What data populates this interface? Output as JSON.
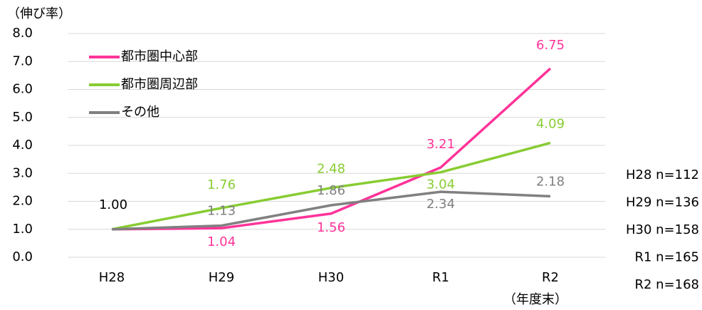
{
  "chart_data": {
    "type": "line",
    "ylabel": "（伸び率）",
    "categories": [
      "H28",
      "H29",
      "H30",
      "R1",
      "R2"
    ],
    "x_note": "（年度末）",
    "series": [
      {
        "name": "都市圏中心部",
        "color": "#ff3399",
        "values": [
          1.0,
          1.04,
          1.56,
          3.21,
          6.75
        ],
        "value_labels": [
          "1.00",
          "1.04",
          "1.56",
          "3.21",
          "6.75"
        ]
      },
      {
        "name": "都市圏周辺部",
        "color": "#88cc33",
        "values": [
          1.0,
          1.76,
          2.48,
          3.04,
          4.09
        ],
        "value_labels": [
          null,
          "1.76",
          "2.48",
          "3.04",
          "4.09"
        ]
      },
      {
        "name": "その他",
        "color": "#808080",
        "values": [
          1.0,
          1.13,
          1.86,
          2.34,
          2.18
        ],
        "value_labels": [
          null,
          "1.13",
          "1.86",
          "2.34",
          "2.18"
        ]
      }
    ],
    "ylim": [
      0,
      8
    ],
    "yticks": [
      {
        "value": 0,
        "label": "0.0"
      },
      {
        "value": 1,
        "label": "1.0"
      },
      {
        "value": 2,
        "label": "2.0"
      },
      {
        "value": 3,
        "label": "3.0"
      },
      {
        "value": 4,
        "label": "4.0"
      },
      {
        "value": 5,
        "label": "5.0"
      },
      {
        "value": 6,
        "label": "6.0"
      },
      {
        "value": 7,
        "label": "7.0"
      },
      {
        "value": 8,
        "label": "8.0"
      }
    ],
    "grid": true,
    "legend": "upper left",
    "notes": [
      "H28 n=112",
      "H29 n=136",
      "H30 n=158",
      "R1 n=165",
      "R2 n=168"
    ]
  }
}
